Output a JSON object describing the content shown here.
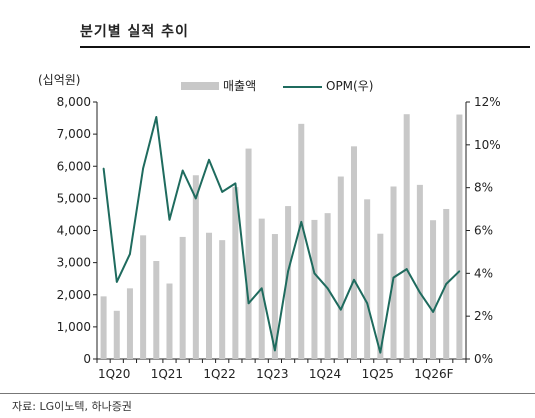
{
  "header": {
    "title": "분기별 실적 추이"
  },
  "source": "자료: LG이노텍, 하나증권",
  "colors": {
    "bar": "#c8c8c8",
    "line": "#1f6b5e"
  },
  "chart_data": {
    "type": "bar",
    "left_axis": {
      "label": "(십억원)",
      "ylim": [
        0,
        8000
      ],
      "ticks": [
        "8,000",
        "7,000",
        "6,000",
        "5,000",
        "4,000",
        "3,000",
        "2,000",
        "1,000",
        "0"
      ]
    },
    "right_axis": {
      "ylim": [
        0,
        12
      ],
      "ticks": [
        "12%",
        "10%",
        "8%",
        "6%",
        "4%",
        "2%",
        "0%"
      ]
    },
    "x_tick_labels": [
      "1Q20",
      "1Q21",
      "1Q22",
      "1Q23",
      "1Q24",
      "1Q25",
      "1Q26F"
    ],
    "x_tick_index": [
      0,
      4,
      8,
      12,
      16,
      20,
      24
    ],
    "categories": [
      "1Q20",
      "2Q20",
      "3Q20",
      "4Q20",
      "1Q21",
      "2Q21",
      "3Q21",
      "4Q21",
      "1Q22",
      "2Q22",
      "3Q22",
      "4Q22",
      "1Q23",
      "2Q23",
      "3Q23",
      "4Q23",
      "1Q24",
      "2Q24",
      "3Q24",
      "4Q24",
      "1Q25",
      "2Q25",
      "3Q25",
      "4Q25",
      "1Q26F",
      "2Q26F",
      "3Q26F",
      "4Q26F"
    ],
    "series": [
      {
        "name": "매출액",
        "type": "bar",
        "axis": "left",
        "values": [
          1950,
          1500,
          2200,
          3850,
          3050,
          2350,
          3800,
          5720,
          3930,
          3700,
          5350,
          6550,
          4370,
          3890,
          4760,
          7320,
          4330,
          4540,
          5680,
          6620,
          4970,
          3900,
          5370,
          7620,
          5420,
          4320,
          4670,
          7610
        ]
      },
      {
        "name": "OPM(우)",
        "type": "line",
        "axis": "right",
        "values": [
          8.9,
          3.6,
          4.9,
          8.9,
          11.3,
          6.5,
          8.8,
          7.5,
          9.3,
          7.8,
          8.2,
          2.6,
          3.3,
          0.4,
          4.1,
          6.4,
          4.0,
          3.3,
          2.3,
          3.7,
          2.6,
          0.3,
          3.8,
          4.2,
          3.1,
          2.2,
          3.5,
          4.1
        ]
      }
    ]
  }
}
